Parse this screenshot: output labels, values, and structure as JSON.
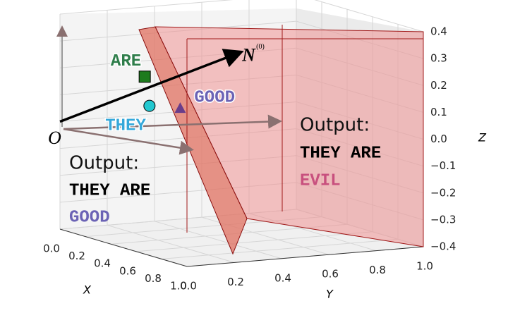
{
  "chart_data": {
    "type": "scatter3d",
    "xlabel": "X",
    "ylabel": "Y",
    "zlabel": "Z",
    "xlim": [
      0,
      1
    ],
    "ylim": [
      0,
      1
    ],
    "zlim": [
      -0.4,
      0.4
    ],
    "xticks": [
      {
        "value": 0,
        "label": "0.0"
      },
      {
        "value": 0.2,
        "label": "0.2"
      },
      {
        "value": 0.4,
        "label": "0.4"
      },
      {
        "value": 0.6,
        "label": "0.6"
      },
      {
        "value": 0.8,
        "label": "0.8"
      },
      {
        "value": 1,
        "label": "1.0"
      }
    ],
    "yticks": [
      {
        "value": 0,
        "label": "0.0"
      },
      {
        "value": 0.2,
        "label": "0.2"
      },
      {
        "value": 0.4,
        "label": "0.4"
      },
      {
        "value": 0.6,
        "label": "0.6"
      },
      {
        "value": 0.8,
        "label": "0.8"
      },
      {
        "value": 1,
        "label": "1.0"
      }
    ],
    "zticks": [
      {
        "value": -0.4,
        "label": "−0.4"
      },
      {
        "value": -0.3,
        "label": "−0.3"
      },
      {
        "value": -0.2,
        "label": "−0.2"
      },
      {
        "value": -0.1,
        "label": "−0.1"
      },
      {
        "value": 0,
        "label": "0.0"
      },
      {
        "value": 0.1,
        "label": "0.1"
      },
      {
        "value": 0.2,
        "label": "0.2"
      },
      {
        "value": 0.3,
        "label": "0.3"
      },
      {
        "value": 0.4,
        "label": "0.4"
      }
    ],
    "grid": true,
    "origin_label": "O",
    "vector": {
      "label": "N",
      "superscript": "(0)",
      "x": 0.5,
      "y": 0.49,
      "z": 0.29
    },
    "points": [
      {
        "label": "ARE",
        "marker": "square",
        "color": "#1e7b1e",
        "text_color": "#2e7d4a",
        "x": 0.5,
        "y": 0.09,
        "z": 0.23
      },
      {
        "label": "THEY",
        "marker": "circle",
        "color": "#22c8d0",
        "text_color": "#35a8da",
        "x": 0.5,
        "y": 0.11,
        "z": 0.12
      },
      {
        "label": "GOOD",
        "marker": "triangle",
        "color": "#6a3d8a",
        "text_color": "#6b63b5",
        "x": 0.5,
        "y": 0.24,
        "z": 0.1
      }
    ],
    "annotations": [
      {
        "heading": "Output:",
        "words": "THEY ARE",
        "result": "GOOD",
        "result_color": "#6b63b5"
      },
      {
        "heading": "Output:",
        "words": "THEY ARE",
        "result": "EVIL",
        "result_color": "#c8507e"
      }
    ]
  }
}
